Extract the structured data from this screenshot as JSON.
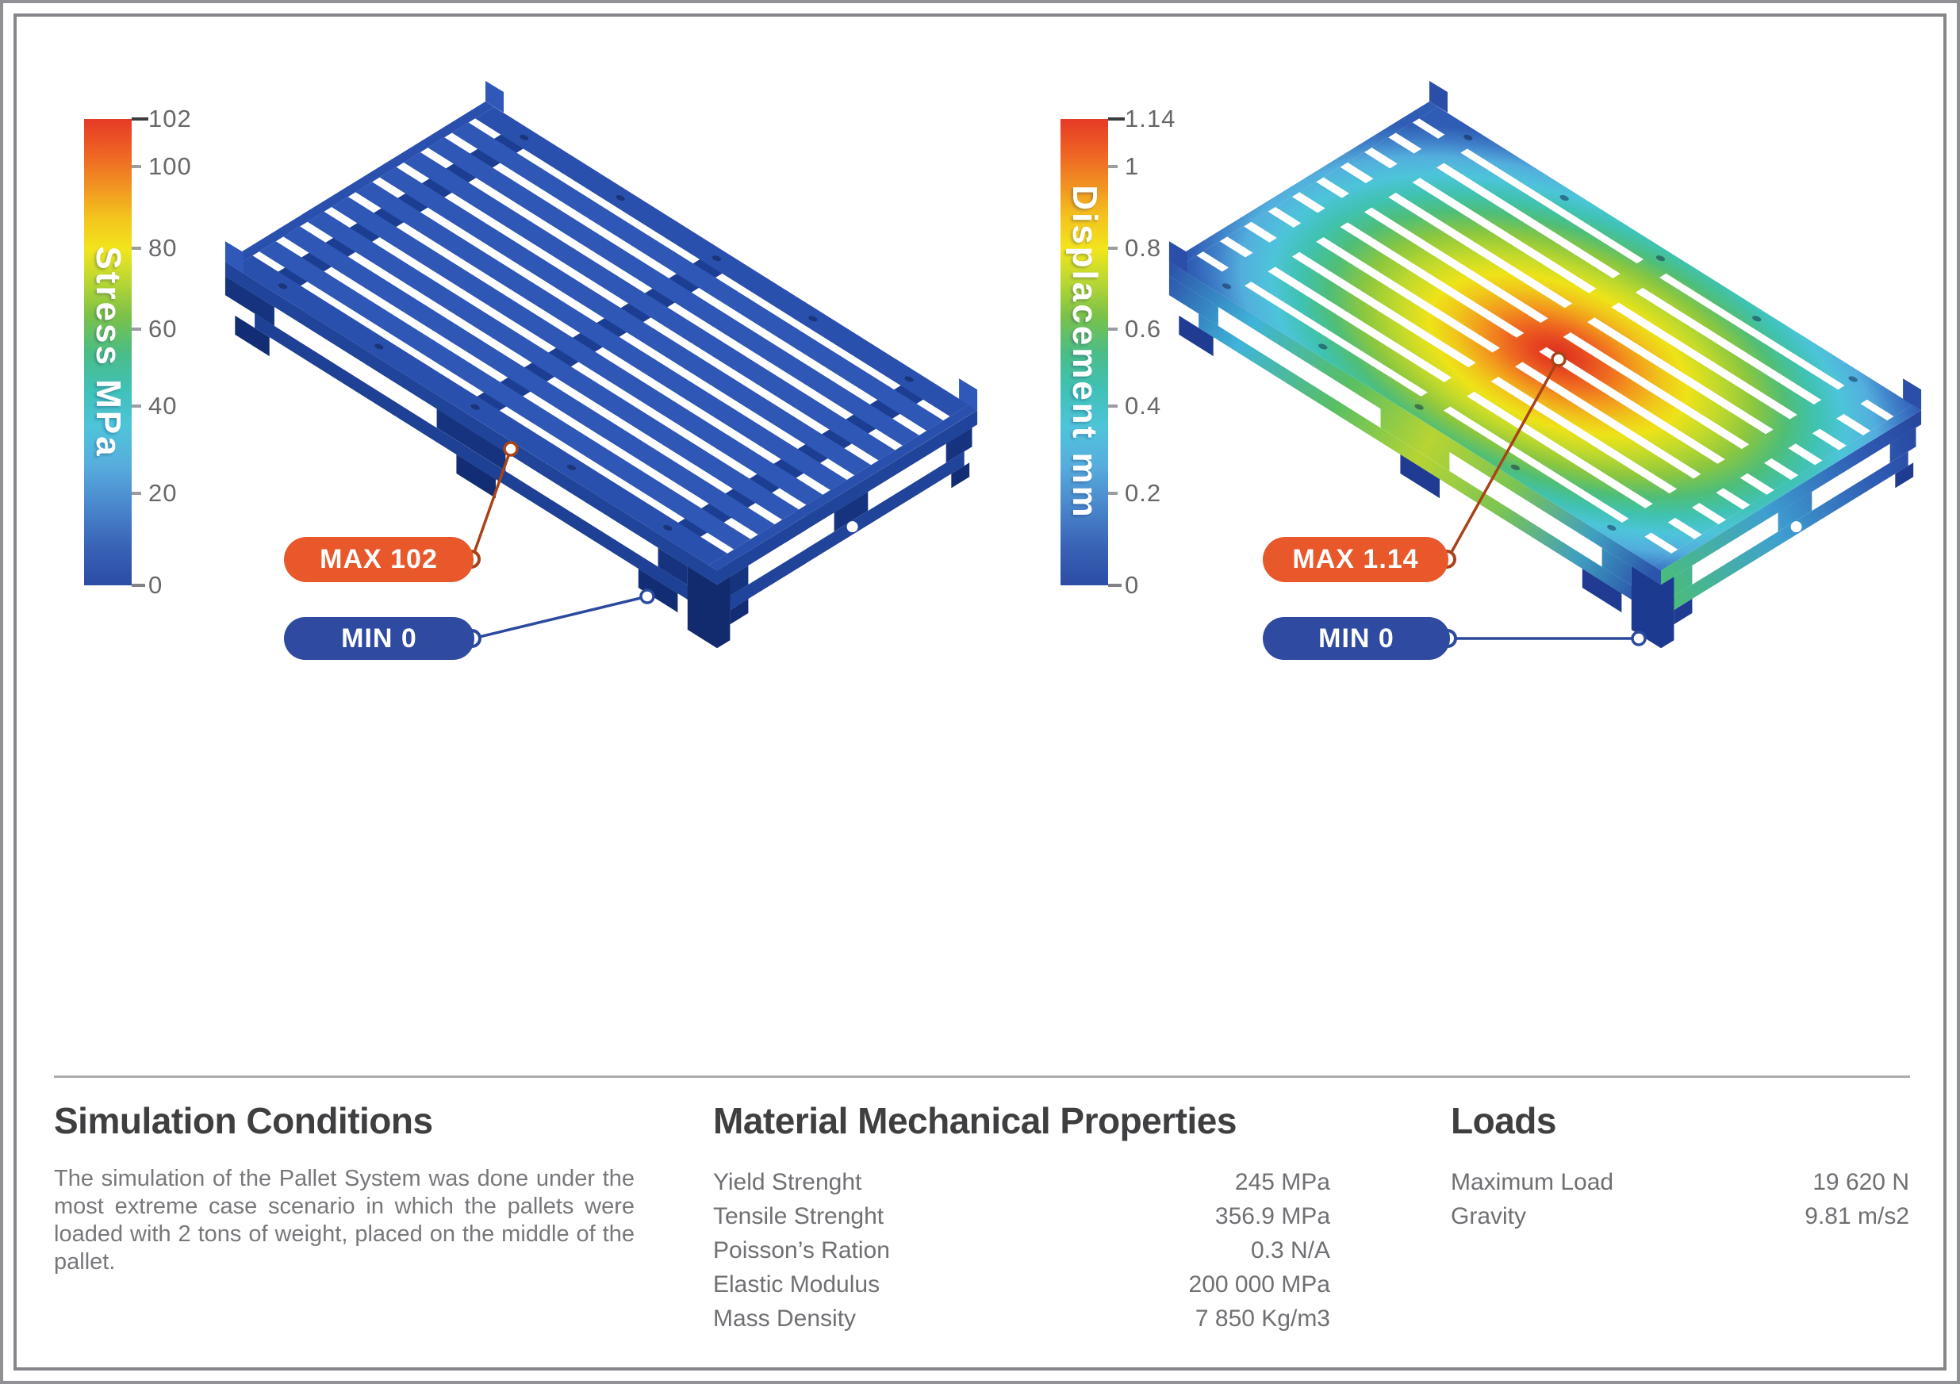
{
  "stress_view": {
    "colorbar": {
      "title": "Stress MPa",
      "ticks": [
        "102",
        "100",
        "80",
        "60",
        "40",
        "20",
        "0"
      ]
    },
    "max_badge": "MAX 102",
    "min_badge": "MIN 0"
  },
  "displacement_view": {
    "colorbar": {
      "title": "Displacement mm",
      "ticks": [
        "1.14",
        "1",
        "0.8",
        "0.6",
        "0.4",
        "0.2",
        "0"
      ]
    },
    "max_badge": "MAX 1.14",
    "min_badge": "MIN 0"
  },
  "footer": {
    "simulation": {
      "title": "Simulation Conditions",
      "body": "The simulation of the Pallet System was done under the most extreme case scenario in which the pallets were loaded with 2 tons of weight, placed on the middle of the pallet."
    },
    "material": {
      "title": "Material Mechanical Properties",
      "rows": [
        {
          "label": "Yield Strenght",
          "value": "245 MPa"
        },
        {
          "label": "Tensile Strenght",
          "value": "356.9 MPa"
        },
        {
          "label": "Poisson’s Ration",
          "value": "0.3 N/A"
        },
        {
          "label": "Elastic Modulus",
          "value": "200 000 MPa"
        },
        {
          "label": "Mass Density",
          "value": "7 850 Kg/m3"
        }
      ]
    },
    "loads": {
      "title": "Loads",
      "rows": [
        {
          "label": "Maximum Load",
          "value": "19 620 N"
        },
        {
          "label": "Gravity",
          "value": "9.81 m/s2"
        }
      ]
    }
  },
  "colors": {
    "badge_max": "#E8582A",
    "badge_min": "#2E4AA1",
    "leader_max": "#A84318",
    "leader_min": "#2B4A9E",
    "scale_top": "#E63A26",
    "scale_bottom": "#2C4DA4",
    "stress_slat": "#2E57B6",
    "stress_frame": "#2A50AE",
    "stress_cross": "#1C3E92",
    "stress_band": "#204499",
    "stress_rail": "#1E4195",
    "stress_leg": "#16337F",
    "stress_foot": "#132D74",
    "stress_post": "#122B6E",
    "stress_tab": "#2F58B8"
  }
}
